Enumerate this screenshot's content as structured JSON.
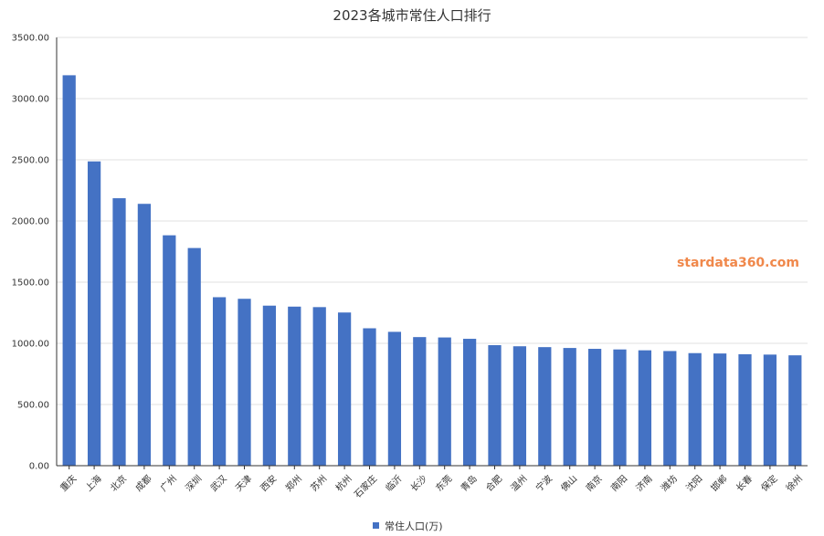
{
  "chart_data": {
    "type": "bar",
    "title": "2023各城市常住人口排行",
    "categories": [
      "重庆",
      "上海",
      "北京",
      "成都",
      "广州",
      "深圳",
      "武汉",
      "天津",
      "西安",
      "郑州",
      "苏州",
      "杭州",
      "石家庄",
      "临沂",
      "长沙",
      "东莞",
      "青岛",
      "合肥",
      "温州",
      "宁波",
      "佛山",
      "南京",
      "南阳",
      "济南",
      "潍坊",
      "沈阳",
      "邯郸",
      "长春",
      "保定",
      "徐州"
    ],
    "series": [
      {
        "name": "常住人口(万)",
        "color": "#4472c4",
        "values": [
          3191,
          2487,
          2186,
          2140,
          1883,
          1779,
          1377,
          1364,
          1308,
          1300,
          1296,
          1252,
          1123,
          1094,
          1051,
          1048,
          1037,
          985,
          976,
          969,
          962,
          955,
          950,
          943,
          937,
          920,
          917,
          911,
          908,
          902
        ]
      }
    ],
    "y_ticks": [
      "0.00",
      "500.00",
      "1000.00",
      "1500.00",
      "2000.00",
      "2500.00",
      "3000.00",
      "3500.00"
    ],
    "ylim": [
      0,
      3500
    ],
    "grid": true,
    "legend_position": "bottom",
    "watermark": "stardata360.com"
  }
}
